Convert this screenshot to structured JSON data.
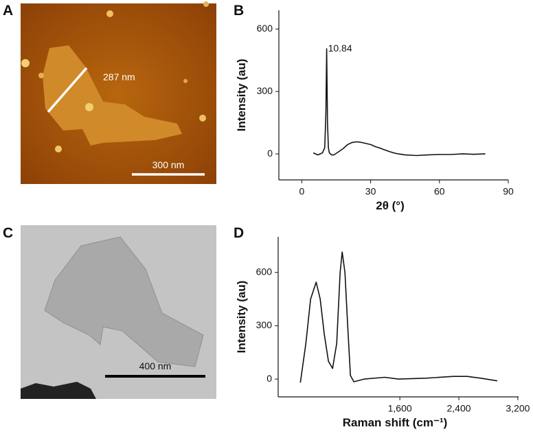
{
  "panels": {
    "A": {
      "letter": "A",
      "line_label": "287 nm",
      "scale_bar": "300 nm"
    },
    "B": {
      "letter": "B"
    },
    "C": {
      "letter": "C",
      "scale_bar": "400 nm"
    },
    "D": {
      "letter": "D"
    }
  },
  "chart_data": [
    {
      "type": "line",
      "x_label": "2θ (°)",
      "y_label": "Intensity (au)",
      "x": [
        5,
        6,
        7,
        8,
        9,
        10,
        10.5,
        10.84,
        11.2,
        11.6,
        12,
        13,
        14,
        16,
        18,
        20,
        22,
        24,
        26,
        28,
        30,
        32,
        34,
        36,
        38,
        40,
        42,
        45,
        50,
        55,
        60,
        65,
        70,
        75,
        80
      ],
      "series": [
        {
          "color": "#111111",
          "values": [
            5,
            0,
            -5,
            0,
            5,
            30,
            200,
            505,
            150,
            30,
            5,
            -5,
            -5,
            10,
            25,
            45,
            55,
            58,
            55,
            50,
            45,
            35,
            28,
            20,
            12,
            5,
            0,
            -5,
            -8,
            -5,
            -3,
            -3,
            0,
            -2,
            0
          ]
        }
      ],
      "annotations": [
        {
          "text": "10.84"
        }
      ],
      "xlim": [
        -10,
        90
      ],
      "xticks": [
        0,
        30,
        60,
        90
      ],
      "ylim": [
        -125,
        690
      ],
      "yticks": [
        0,
        300,
        600
      ]
    },
    {
      "type": "line",
      "x_label": "Raman shift (cm⁻¹)",
      "y_label": "Intensity (au)",
      "x": [
        251,
        325,
        390,
        465,
        520,
        576,
        632,
        688,
        744,
        790,
        818,
        855,
        893,
        930,
        976,
        1116,
        1395,
        1581,
        1953,
        2325,
        2511,
        2697,
        2921
      ],
      "series": [
        {
          "color": "#111111",
          "values": [
            -20,
            200,
            450,
            545,
            450,
            250,
            100,
            60,
            200,
            600,
            715,
            600,
            300,
            20,
            -15,
            0,
            10,
            0,
            5,
            15,
            15,
            5,
            -10
          ]
        }
      ],
      "xlim": [
        -50,
        3210
      ],
      "xticks": [
        {
          "value": 1600,
          "label": "1,600"
        },
        {
          "value": 2400,
          "label": "2,400"
        },
        {
          "value": 3200,
          "label": "3,200"
        }
      ],
      "ylim": [
        -100,
        800
      ],
      "yticks": [
        0,
        300,
        600
      ]
    }
  ]
}
